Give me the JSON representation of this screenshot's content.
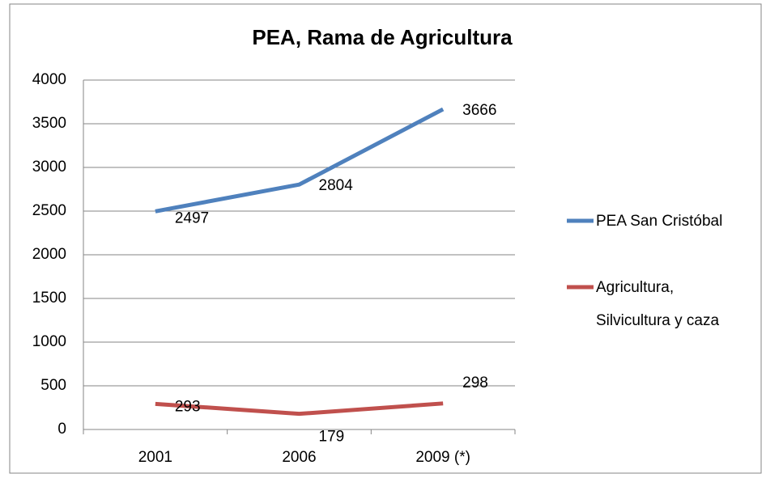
{
  "chart_data": {
    "type": "line",
    "title": "PEA, Rama de Agricultura",
    "categories": [
      "2001",
      "2006",
      "2009 (*)"
    ],
    "series": [
      {
        "name": "PEA  San Cristóbal",
        "color": "#4f81bd",
        "values": [
          2497,
          2804,
          3666
        ]
      },
      {
        "name": "Agricultura, Silvicultura y caza",
        "color": "#c0504d",
        "values": [
          293,
          179,
          298
        ]
      }
    ],
    "ylim": [
      0,
      4000
    ],
    "yticks": [
      0,
      500,
      1000,
      1500,
      2000,
      2500,
      3000,
      3500,
      4000
    ],
    "grid": true,
    "legend": "right"
  }
}
